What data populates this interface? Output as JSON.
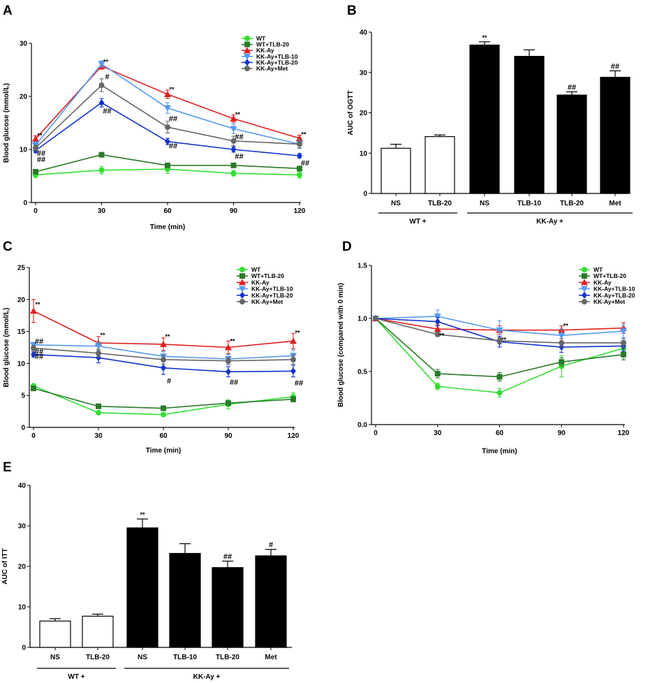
{
  "figure": {
    "panel_labels": [
      "A",
      "B",
      "C",
      "D",
      "E"
    ]
  },
  "chart_data": [
    {
      "id": "A",
      "type": "line",
      "title": "",
      "xlabel": "Time (min)",
      "ylabel": "Blood glucose (mmol/L)",
      "x": [
        0,
        30,
        60,
        90,
        120
      ],
      "xticks": [
        "0",
        "30",
        "60",
        "90",
        "120"
      ],
      "yticks": [
        "0",
        "10",
        "20",
        "30"
      ],
      "ylim": [
        0,
        30
      ],
      "legend_position": "top-right",
      "series": [
        {
          "name": "WT",
          "color": "#33dd33",
          "marker": "circle",
          "values": [
            5.2,
            6.1,
            6.3,
            5.5,
            5.2
          ],
          "errors": [
            0.5,
            0.7,
            0.8,
            0.5,
            0.6
          ]
        },
        {
          "name": "WT+TLB-20",
          "color": "#2a7a2a",
          "marker": "square",
          "values": [
            5.8,
            9.0,
            7.0,
            7.0,
            6.4
          ],
          "errors": [
            0.3,
            0.4,
            0.4,
            0.3,
            0.3
          ]
        },
        {
          "name": "KK-Ay",
          "color": "#e02020",
          "marker": "triangle-up",
          "values": [
            12.0,
            25.7,
            20.4,
            15.8,
            12.1
          ],
          "errors": [
            0.6,
            0.6,
            0.8,
            0.7,
            0.6
          ]
        },
        {
          "name": "KK-Ay+TLB-10",
          "color": "#5599ee",
          "marker": "triangle-down",
          "values": [
            10.8,
            26.1,
            17.8,
            13.9,
            11.0
          ],
          "errors": [
            0.6,
            0.6,
            1.0,
            0.9,
            0.8
          ]
        },
        {
          "name": "KK-Ay+TLB-20",
          "color": "#1133cc",
          "marker": "diamond",
          "values": [
            9.8,
            18.8,
            11.5,
            10.0,
            8.8
          ],
          "errors": [
            0.4,
            0.8,
            0.6,
            0.5,
            0.4
          ]
        },
        {
          "name": "KK-Ay+Met",
          "color": "#666666",
          "marker": "circle",
          "values": [
            10.3,
            22.1,
            14.2,
            11.6,
            11.0
          ],
          "errors": [
            0.5,
            1.2,
            1.1,
            0.9,
            0.7
          ]
        }
      ],
      "annotations": [
        {
          "text": "**",
          "x": 0,
          "y": 12.6
        },
        {
          "text": "##",
          "x": 0,
          "y": 9.2
        },
        {
          "text": "##",
          "x": 0,
          "y": 8.0
        },
        {
          "text": "**",
          "x": 30,
          "y": 26.5
        },
        {
          "text": "#",
          "x": 30,
          "y": 23.6
        },
        {
          "text": "##",
          "x": 30,
          "y": 17.2
        },
        {
          "text": "**",
          "x": 60,
          "y": 21.3
        },
        {
          "text": "##",
          "x": 60,
          "y": 15.7
        },
        {
          "text": "##",
          "x": 60,
          "y": 10.6
        },
        {
          "text": "**",
          "x": 90,
          "y": 16.6
        },
        {
          "text": "##",
          "x": 90,
          "y": 12.3
        },
        {
          "text": "##",
          "x": 90,
          "y": 8.6
        },
        {
          "text": "**",
          "x": 120,
          "y": 12.8
        },
        {
          "text": "##",
          "x": 120,
          "y": 7.4
        }
      ]
    },
    {
      "id": "B",
      "type": "bar",
      "title": "",
      "xlabel": "",
      "ylabel": "AUC of OGTT",
      "categories": [
        "NS",
        "TLB-20",
        "NS",
        "TLB-10",
        "TLB-20",
        "Met"
      ],
      "values": [
        11.2,
        14.1,
        36.8,
        34.0,
        24.4,
        28.8
      ],
      "errors": [
        1.0,
        0.4,
        0.8,
        1.6,
        0.8,
        1.6
      ],
      "fills": [
        "#ffffff",
        "#ffffff",
        "#000000",
        "#000000",
        "#000000",
        "#000000"
      ],
      "labels": [
        "",
        "",
        "**",
        "",
        "##",
        "##"
      ],
      "yticks": [
        "0",
        "10",
        "20",
        "30",
        "40"
      ],
      "ylim": [
        0,
        40
      ],
      "groups": [
        {
          "label": "WT +",
          "start": 0,
          "end": 1
        },
        {
          "label": "KK-Ay +",
          "start": 2,
          "end": 5
        }
      ]
    },
    {
      "id": "C",
      "type": "line",
      "title": "",
      "xlabel": "Time (min)",
      "ylabel": "Blood glucose (mmol/L)",
      "x": [
        0,
        30,
        60,
        90,
        120
      ],
      "xticks": [
        "0",
        "30",
        "60",
        "90",
        "120"
      ],
      "yticks": [
        "0",
        "5",
        "10",
        "15",
        "20",
        "25"
      ],
      "ylim": [
        0,
        25
      ],
      "legend_position": "top-right",
      "series": [
        {
          "name": "WT",
          "color": "#33dd33",
          "marker": "circle",
          "values": [
            6.5,
            2.3,
            2.0,
            3.6,
            4.8
          ],
          "errors": [
            0.3,
            0.2,
            0.2,
            0.7,
            0.6
          ]
        },
        {
          "name": "WT+TLB-20",
          "color": "#2a7a2a",
          "marker": "square",
          "values": [
            6.1,
            3.3,
            3.0,
            3.8,
            4.4
          ],
          "errors": [
            0.3,
            0.3,
            0.3,
            0.3,
            0.4
          ]
        },
        {
          "name": "KK-Ay",
          "color": "#e02020",
          "marker": "triangle-up",
          "values": [
            18.2,
            13.2,
            13.0,
            12.5,
            13.5
          ],
          "errors": [
            1.8,
            1.0,
            1.0,
            1.0,
            1.2
          ]
        },
        {
          "name": "KK-Ay+TLB-10",
          "color": "#5599ee",
          "marker": "triangle-down",
          "values": [
            12.9,
            12.7,
            11.1,
            10.7,
            11.2
          ],
          "errors": [
            0.4,
            0.6,
            0.8,
            0.7,
            0.9
          ]
        },
        {
          "name": "KK-Ay+TLB-20",
          "color": "#1133cc",
          "marker": "diamond",
          "values": [
            11.4,
            10.9,
            9.3,
            8.7,
            8.8
          ],
          "errors": [
            0.4,
            0.8,
            1.0,
            0.8,
            0.9
          ]
        },
        {
          "name": "KK-Ay+Met",
          "color": "#666666",
          "marker": "circle",
          "values": [
            12.4,
            11.6,
            10.6,
            10.4,
            10.6
          ],
          "errors": [
            0.4,
            0.6,
            0.7,
            0.6,
            0.7
          ]
        }
      ],
      "annotations": [
        {
          "text": "**",
          "x": 0,
          "y": 19.2
        },
        {
          "text": "##",
          "x": 0,
          "y": 13.4
        },
        {
          "text": "##",
          "x": 0,
          "y": 11.8
        },
        {
          "text": "##",
          "x": 0,
          "y": 11.0
        },
        {
          "text": "**",
          "x": 30,
          "y": 14.4
        },
        {
          "text": "**",
          "x": 60,
          "y": 14.2
        },
        {
          "text": "#",
          "x": 60,
          "y": 7.2
        },
        {
          "text": "**",
          "x": 90,
          "y": 13.5
        },
        {
          "text": "##",
          "x": 90,
          "y": 7.0
        },
        {
          "text": "**",
          "x": 120,
          "y": 14.8
        },
        {
          "text": "##",
          "x": 120,
          "y": 6.9
        }
      ]
    },
    {
      "id": "D",
      "type": "line",
      "title": "",
      "xlabel": "Time (min)",
      "ylabel": "Blood glucose (compared with 0 min)",
      "x": [
        0,
        30,
        60,
        90,
        120
      ],
      "xticks": [
        "0",
        "30",
        "60",
        "90",
        "120"
      ],
      "yticks": [
        "0.0",
        "0.5",
        "1.0",
        "1.5"
      ],
      "ylim": [
        0,
        1.5
      ],
      "legend_position": "top-right",
      "series": [
        {
          "name": "WT",
          "color": "#33dd33",
          "marker": "circle",
          "values": [
            1.0,
            0.36,
            0.3,
            0.55,
            0.72
          ],
          "errors": [
            0.0,
            0.03,
            0.04,
            0.1,
            0.07
          ]
        },
        {
          "name": "WT+TLB-20",
          "color": "#2a7a2a",
          "marker": "square",
          "values": [
            1.0,
            0.48,
            0.45,
            0.59,
            0.66
          ],
          "errors": [
            0.0,
            0.04,
            0.04,
            0.04,
            0.05
          ]
        },
        {
          "name": "KK-Ay",
          "color": "#e02020",
          "marker": "triangle-up",
          "values": [
            1.0,
            0.9,
            0.89,
            0.89,
            0.91
          ],
          "errors": [
            0.0,
            0.04,
            0.04,
            0.04,
            0.05
          ]
        },
        {
          "name": "KK-Ay+TLB-10",
          "color": "#5599ee",
          "marker": "triangle-down",
          "values": [
            1.0,
            1.02,
            0.89,
            0.84,
            0.88
          ],
          "errors": [
            0.0,
            0.06,
            0.09,
            0.06,
            0.06
          ]
        },
        {
          "name": "KK-Ay+TLB-20",
          "color": "#1133cc",
          "marker": "diamond",
          "values": [
            1.0,
            0.97,
            0.78,
            0.73,
            0.74
          ],
          "errors": [
            0.0,
            0.04,
            0.05,
            0.05,
            0.05
          ]
        },
        {
          "name": "KK-Ay+Met",
          "color": "#666666",
          "marker": "circle",
          "values": [
            1.0,
            0.85,
            0.79,
            0.77,
            0.77
          ],
          "errors": [
            0.0,
            0.02,
            0.03,
            0.04,
            0.04
          ]
        }
      ],
      "annotations": [
        {
          "text": "**",
          "x": 30,
          "y": 0.84
        },
        {
          "text": "**",
          "x": 60,
          "y": 0.8
        },
        {
          "text": "**",
          "x": 90,
          "y": 0.93
        }
      ]
    },
    {
      "id": "E",
      "type": "bar",
      "title": "",
      "xlabel": "",
      "ylabel": "AUC of ITT",
      "categories": [
        "NS",
        "TLB-20",
        "NS",
        "TLB-10",
        "TLB-20",
        "Met"
      ],
      "values": [
        6.5,
        7.7,
        29.5,
        23.2,
        19.7,
        22.6
      ],
      "errors": [
        0.6,
        0.5,
        2.2,
        2.4,
        1.6,
        1.6
      ],
      "fills": [
        "#ffffff",
        "#ffffff",
        "#000000",
        "#000000",
        "#000000",
        "#000000"
      ],
      "labels": [
        "",
        "",
        "**",
        "",
        "##",
        "#"
      ],
      "yticks": [
        "0",
        "10",
        "20",
        "30",
        "40"
      ],
      "ylim": [
        0,
        40
      ],
      "groups": [
        {
          "label": "WT +",
          "start": 0,
          "end": 1
        },
        {
          "label": "KK-Ay +",
          "start": 2,
          "end": 5
        }
      ]
    }
  ]
}
